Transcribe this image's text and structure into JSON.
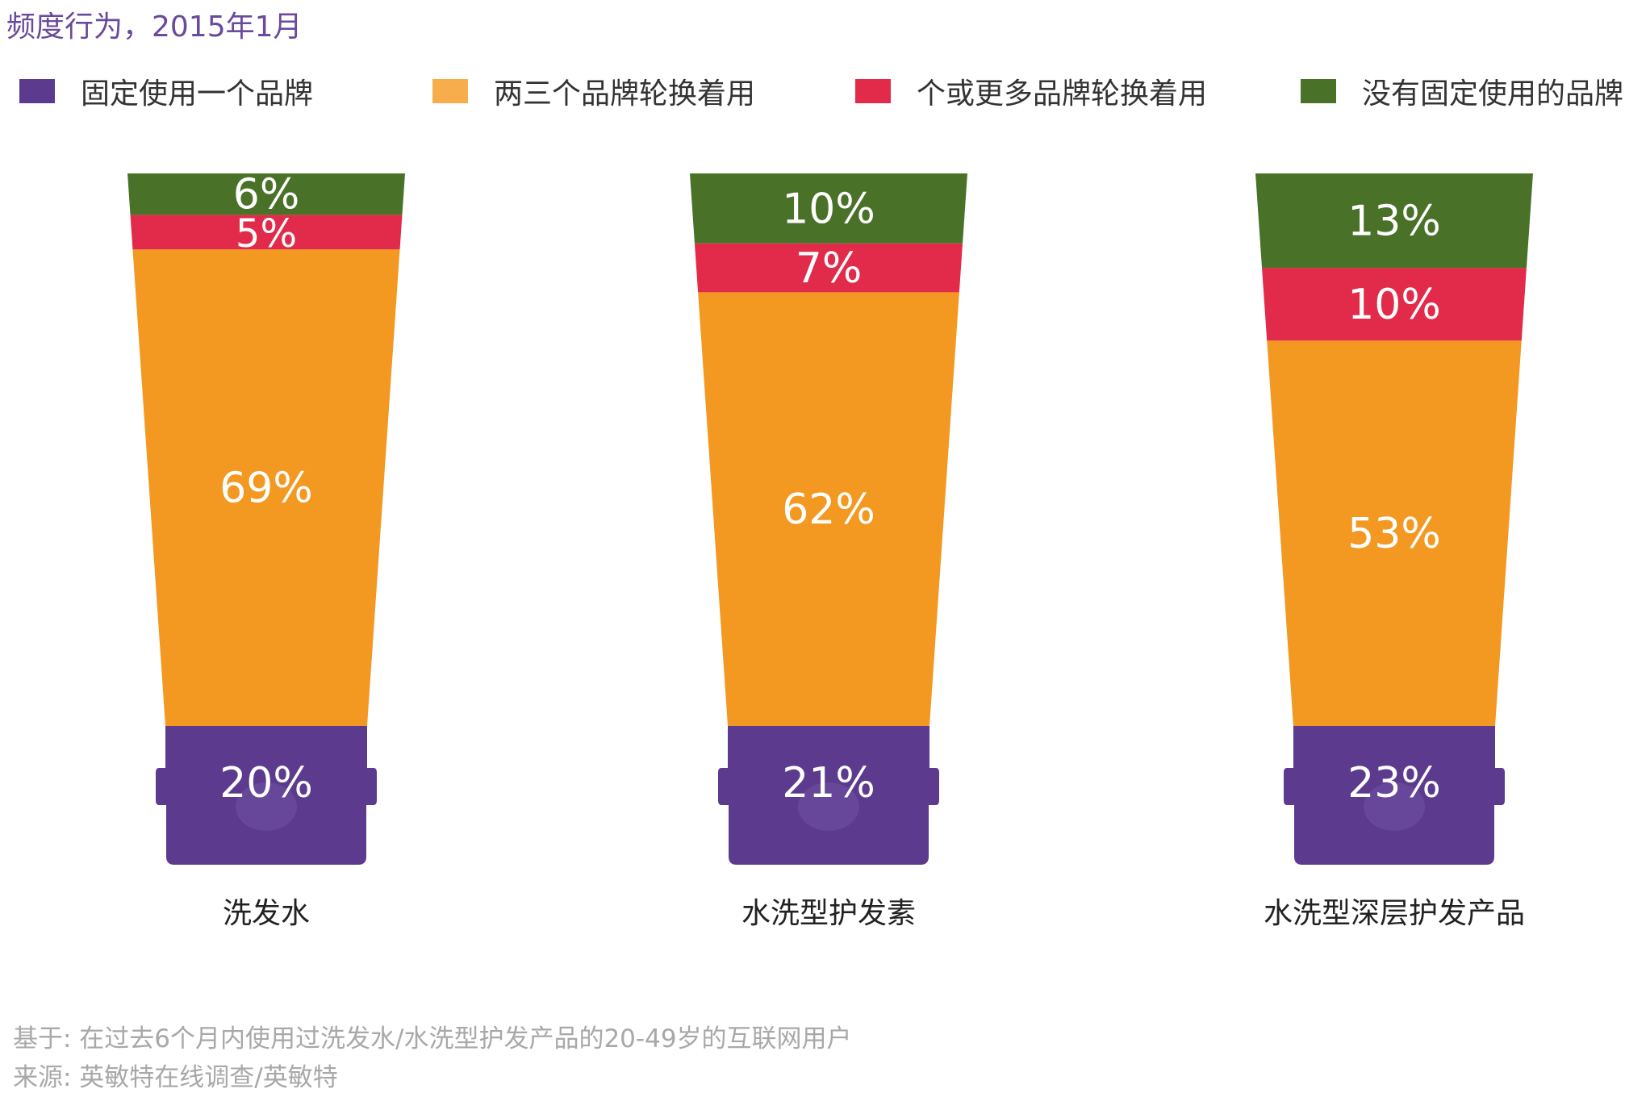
{
  "title": "频度行为，2015年1月",
  "legend": [
    {
      "label": "固定使用一个品牌",
      "color": "#5c3b8f"
    },
    {
      "label": "两三个品牌轮换着用",
      "color": "#f7ad4c"
    },
    {
      "label": "个或更多品牌轮换着用",
      "color": "#e22a4a"
    },
    {
      "label": "没有固定使用的品牌",
      "color": "#4a7128"
    }
  ],
  "chart_data": {
    "type": "bar",
    "stacked": true,
    "unit": "%",
    "categories": [
      "洗发水",
      "水洗型护发素",
      "水洗型深层护发产品"
    ],
    "series": [
      {
        "name": "固定使用一个品牌",
        "color": "#5c3b8f",
        "values": [
          20,
          21,
          23
        ],
        "labels": [
          "20%",
          "21%",
          "23%"
        ]
      },
      {
        "name": "两三个品牌轮换着用",
        "color": "#f39821",
        "values": [
          69,
          62,
          53
        ],
        "labels": [
          "69%",
          "62%",
          "53%"
        ]
      },
      {
        "name": "个或更多品牌轮换着用",
        "color": "#e22a4a",
        "values": [
          5,
          7,
          10
        ],
        "labels": [
          "5%",
          "7%",
          "10%"
        ]
      },
      {
        "name": "没有固定使用的品牌",
        "color": "#4a7128",
        "values": [
          6,
          10,
          13
        ],
        "labels": [
          "6%",
          "10%",
          "13%"
        ]
      }
    ]
  },
  "footnote": {
    "base": "基于: 在过去6个月内使用过洗发水/水洗型护发产品的20-49岁的互联网用户",
    "source": "来源: 英敏特在线调查/英敏特"
  }
}
